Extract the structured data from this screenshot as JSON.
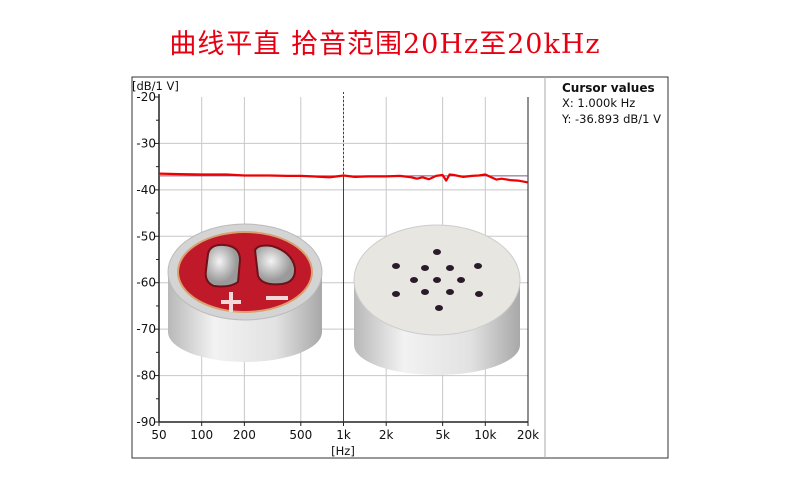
{
  "title": "曲线平直 拾音范围20Hz至20kHz",
  "cursor_panel": {
    "heading": "Cursor values",
    "x": "X: 1.000k Hz",
    "y": "Y: -36.893 dB/1 V"
  },
  "colors": {
    "title": "#e60012",
    "curve": "#ee0000",
    "reference": "#7a5a8a",
    "cursor": "#5a2a6a",
    "grid": "#c8c8c8"
  },
  "chart_data": {
    "type": "line",
    "xlabel": "[Hz]",
    "ylabel": "[dB/1 V]",
    "xscale": "log",
    "xlim": [
      50,
      20000
    ],
    "ylim": [
      -90,
      -20
    ],
    "grid": true,
    "x_ticks": [
      50,
      100,
      200,
      500,
      1000,
      2000,
      5000,
      10000,
      20000
    ],
    "x_tick_labels": [
      "50",
      "100",
      "200",
      "500",
      "1k",
      "2k",
      "5k",
      "10k",
      "20k"
    ],
    "y_ticks": [
      -20,
      -30,
      -40,
      -50,
      -60,
      -70,
      -80,
      -90
    ],
    "y_tick_labels": [
      "-20",
      "-30",
      "-40",
      "-50",
      "-60",
      "-70",
      "-80",
      "-90"
    ],
    "cursor_x": 1000,
    "reference_level": -37.0,
    "series": [
      {
        "x": [
          50,
          70,
          100,
          150,
          200,
          300,
          400,
          500,
          600,
          700,
          800,
          900,
          1000,
          1200,
          1500,
          2000,
          2500,
          3000,
          3300,
          3600,
          4000,
          4500,
          5000,
          5300,
          5600,
          6000,
          7000,
          8000,
          9000,
          10000,
          11000,
          12000,
          13000,
          15000,
          17000,
          20000
        ],
        "y": [
          -36.5,
          -36.6,
          -36.7,
          -36.7,
          -36.9,
          -36.9,
          -37.0,
          -37.0,
          -37.1,
          -37.2,
          -37.3,
          -37.1,
          -36.9,
          -37.2,
          -37.1,
          -37.1,
          -37.0,
          -37.3,
          -37.6,
          -37.3,
          -37.7,
          -37.0,
          -36.8,
          -38.0,
          -36.7,
          -36.8,
          -37.2,
          -37.0,
          -36.9,
          -36.7,
          -37.3,
          -37.8,
          -37.6,
          -37.9,
          -38.0,
          -38.4
        ]
      }
    ]
  }
}
